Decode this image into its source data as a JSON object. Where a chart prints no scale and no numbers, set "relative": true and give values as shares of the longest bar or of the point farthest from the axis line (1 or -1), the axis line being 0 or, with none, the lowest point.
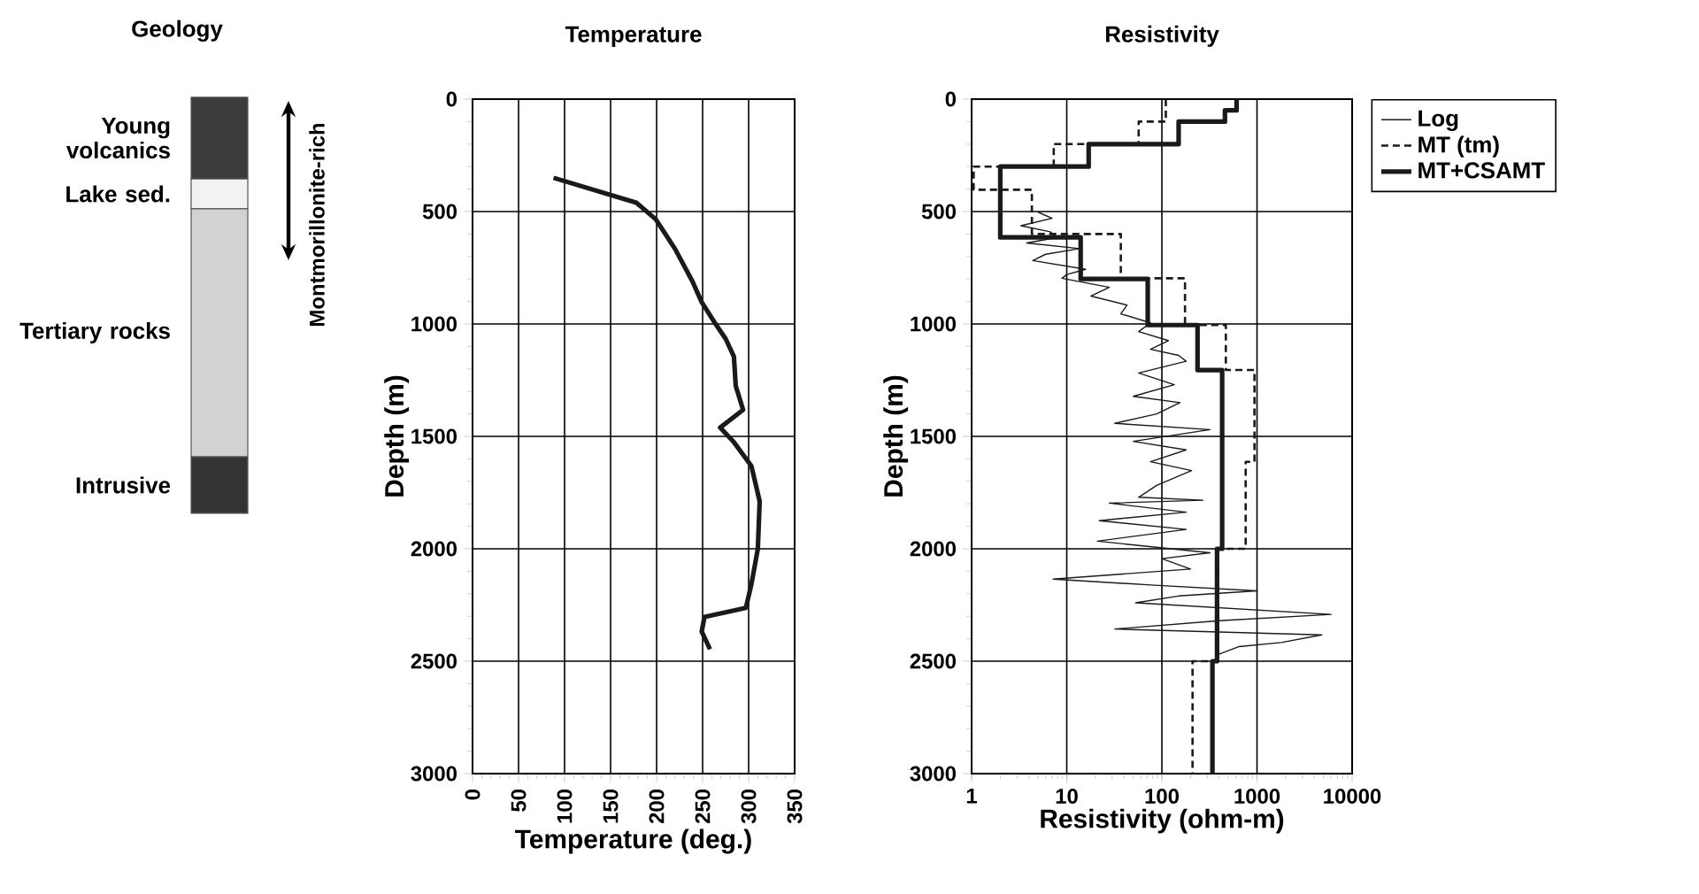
{
  "chart_data": [
    {
      "type": "bar",
      "title": "Geology",
      "stacked": true,
      "relative": true,
      "categories": [
        null
      ],
      "annotations": [
        "Montmorillonite-rich"
      ],
      "series": [
        {
          "name": "Intrusive",
          "color": "#333333",
          "values": [
            0.136
          ]
        },
        {
          "name": "Tertiary rocks",
          "color": "#d2d2d2",
          "values": [
            0.596
          ]
        },
        {
          "name": "Lake sed.",
          "color": "#f2f2f2",
          "values": [
            0.072
          ]
        },
        {
          "name": "Young volcanics",
          "color": "#3c3c3c",
          "values": [
            0.196
          ]
        }
      ]
    },
    {
      "type": "line",
      "title": "Temperature",
      "xlabel": "Temperature (deg.)",
      "ylabel": "Depth (m)",
      "xlim": [
        0,
        350
      ],
      "ylim": [
        3000,
        0
      ],
      "xticks": [
        0,
        50,
        100,
        150,
        200,
        250,
        300,
        350
      ],
      "yticks": [
        0,
        500,
        1000,
        1500,
        2000,
        2500,
        3000
      ],
      "grid": true,
      "series": [
        {
          "color": "#1a1a1a",
          "x": [
            88,
            146,
            178,
            199,
            220,
            239,
            249,
            262,
            275,
            284,
            286,
            294,
            269,
            284,
            303,
            312,
            310,
            303,
            297,
            252,
            249,
            258
          ],
          "values": [
            350,
            421,
            461,
            534,
            666,
            811,
            903,
            987,
            1066,
            1145,
            1276,
            1382,
            1461,
            1526,
            1632,
            1789,
            2000,
            2158,
            2263,
            2303,
            2368,
            2447
          ]
        }
      ]
    },
    {
      "type": "line",
      "title": "Resistivity",
      "xlabel": "Resistivity (ohm-m)",
      "ylabel": "Depth (m)",
      "log": "x",
      "xlim": [
        1,
        10000
      ],
      "ylim": [
        3000,
        0
      ],
      "xticks": [
        1,
        10,
        100,
        1000,
        10000
      ],
      "yticks": [
        0,
        500,
        1000,
        1500,
        2000,
        2500,
        3000
      ],
      "grid": true,
      "legend": "top right",
      "series": [
        {
          "name": "Log",
          "color": "#1a1a1a",
          "line_style": "solid",
          "x": [
            5,
            7,
            3.3,
            6.7,
            8,
            3.8,
            13.7,
            6,
            4.4,
            15.8,
            10,
            8.9,
            28,
            18,
            43,
            37,
            76,
            57,
            117,
            76,
            150,
            180,
            57,
            135,
            50,
            155,
            88,
            32,
            320,
            50,
            180,
            76,
            205,
            88,
            57,
            270,
            28,
            180,
            22,
            180,
            21,
            320,
            100,
            200,
            7.2,
            76,
            1000,
            150,
            53,
            6000,
            400,
            32,
            4800,
            1800,
            650,
            370
          ],
          "values": [
            503,
            530,
            563,
            590,
            615,
            640,
            665,
            690,
            718,
            757,
            780,
            797,
            837,
            876,
            916,
            955,
            995,
            1034,
            1074,
            1113,
            1140,
            1166,
            1218,
            1270,
            1322,
            1350,
            1400,
            1442,
            1470,
            1522,
            1560,
            1613,
            1652,
            1718,
            1771,
            1784,
            1797,
            1837,
            1875,
            1914,
            1966,
            2018,
            2044,
            2090,
            2135,
            2161,
            2187,
            2210,
            2240,
            2292,
            2320,
            2357,
            2383,
            2417,
            2435,
            2474
          ]
        },
        {
          "name": "MT (tm)",
          "color": "#1a1a1a",
          "line_style": "dashed",
          "x": [
            110,
            110,
            57,
            57,
            7.3,
            7.3,
            1.05,
            1.05,
            4.3,
            4.3,
            37,
            37,
            175,
            175,
            470,
            470,
            940,
            940,
            760,
            760,
            390,
            390,
            210,
            210
          ],
          "values": [
            0,
            100,
            100,
            200,
            200,
            300,
            300,
            403,
            403,
            600,
            600,
            797,
            797,
            1005,
            1005,
            1205,
            1205,
            1613,
            1613,
            2000,
            2000,
            2500,
            2500,
            3000
          ]
        },
        {
          "name": "MT+CSAMT",
          "color": "#1a1a1a",
          "line_style": "solid",
          "x": [
            610,
            610,
            460,
            460,
            150,
            150,
            17,
            17,
            2,
            2,
            14,
            14,
            71,
            71,
            237,
            237,
            430,
            430,
            380,
            380,
            340,
            340
          ],
          "values": [
            0,
            50,
            50,
            100,
            100,
            200,
            200,
            300,
            300,
            615,
            615,
            800,
            800,
            1005,
            1005,
            1205,
            1205,
            2000,
            2000,
            2500,
            2500,
            3000
          ]
        }
      ]
    }
  ]
}
